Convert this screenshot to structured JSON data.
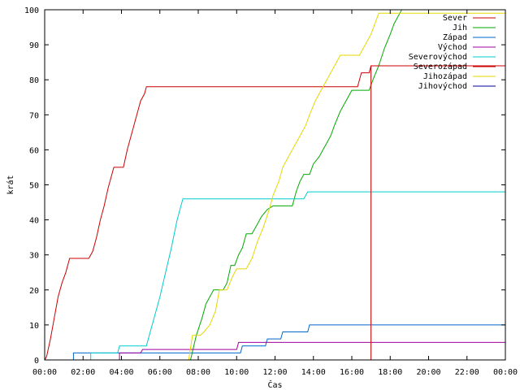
{
  "chart_data": {
    "type": "line",
    "title": "",
    "xlabel": "Čas",
    "ylabel": "krát",
    "xlim": [
      0,
      24
    ],
    "ylim": [
      0,
      100
    ],
    "grid": false,
    "legend_position": "top-right",
    "x_ticks": [
      {
        "value": 0,
        "label": "00:00"
      },
      {
        "value": 2,
        "label": "02:00"
      },
      {
        "value": 4,
        "label": "04:00"
      },
      {
        "value": 6,
        "label": "06:00"
      },
      {
        "value": 8,
        "label": "08:00"
      },
      {
        "value": 10,
        "label": "10:00"
      },
      {
        "value": 12,
        "label": "12:00"
      },
      {
        "value": 14,
        "label": "14:00"
      },
      {
        "value": 16,
        "label": "16:00"
      },
      {
        "value": 18,
        "label": "18:00"
      },
      {
        "value": 20,
        "label": "20:00"
      },
      {
        "value": 22,
        "label": "22:00"
      },
      {
        "value": 24,
        "label": "00:00"
      }
    ],
    "y_ticks": [
      {
        "value": 0,
        "label": "0"
      },
      {
        "value": 10,
        "label": "10"
      },
      {
        "value": 20,
        "label": "20"
      },
      {
        "value": 30,
        "label": "30"
      },
      {
        "value": 40,
        "label": "40"
      },
      {
        "value": 50,
        "label": "50"
      },
      {
        "value": 60,
        "label": "60"
      },
      {
        "value": 70,
        "label": "70"
      },
      {
        "value": 80,
        "label": "80"
      },
      {
        "value": 90,
        "label": "90"
      },
      {
        "value": 100,
        "label": "100"
      }
    ],
    "series": [
      {
        "name": "Sever",
        "color": "#cc0000",
        "points": [
          [
            0,
            0
          ],
          [
            0.1,
            1
          ],
          [
            0.3,
            6
          ],
          [
            0.5,
            12
          ],
          [
            0.7,
            18
          ],
          [
            0.9,
            22
          ],
          [
            1.1,
            25
          ],
          [
            1.3,
            29
          ],
          [
            2.3,
            29
          ],
          [
            2.5,
            31
          ],
          [
            2.7,
            35
          ],
          [
            2.9,
            40
          ],
          [
            3.1,
            44
          ],
          [
            3.3,
            49
          ],
          [
            3.5,
            53
          ],
          [
            3.6,
            55
          ],
          [
            4.1,
            55
          ],
          [
            4.3,
            60
          ],
          [
            4.6,
            66
          ],
          [
            4.8,
            70
          ],
          [
            5.0,
            74
          ],
          [
            5.2,
            76
          ],
          [
            5.3,
            78
          ],
          [
            16.3,
            78
          ],
          [
            16.5,
            82
          ],
          [
            16.9,
            82
          ],
          [
            17.0,
            84
          ],
          [
            24,
            84
          ]
        ]
      },
      {
        "name": "Jih",
        "color": "#00aa00",
        "points": [
          [
            0,
            0
          ],
          [
            7.6,
            0
          ],
          [
            7.9,
            7
          ],
          [
            8.2,
            12
          ],
          [
            8.4,
            16
          ],
          [
            8.6,
            18
          ],
          [
            8.8,
            20
          ],
          [
            9.3,
            20
          ],
          [
            9.5,
            22
          ],
          [
            9.7,
            27
          ],
          [
            9.9,
            27
          ],
          [
            10.1,
            30
          ],
          [
            10.3,
            32
          ],
          [
            10.5,
            36
          ],
          [
            10.8,
            36
          ],
          [
            11.0,
            38
          ],
          [
            11.3,
            41
          ],
          [
            11.6,
            43
          ],
          [
            11.9,
            44
          ],
          [
            12.9,
            44
          ],
          [
            13.1,
            48
          ],
          [
            13.3,
            51
          ],
          [
            13.5,
            53
          ],
          [
            13.8,
            53
          ],
          [
            14.0,
            56
          ],
          [
            14.3,
            58
          ],
          [
            14.6,
            61
          ],
          [
            14.9,
            64
          ],
          [
            15.1,
            67
          ],
          [
            15.4,
            71
          ],
          [
            15.7,
            74
          ],
          [
            16.0,
            77
          ],
          [
            16.9,
            77
          ],
          [
            17.1,
            80
          ],
          [
            17.4,
            84
          ],
          [
            17.7,
            89
          ],
          [
            18.0,
            93
          ],
          [
            18.2,
            96
          ],
          [
            18.4,
            98
          ],
          [
            18.6,
            100
          ],
          [
            24,
            100
          ]
        ]
      },
      {
        "name": "Západ",
        "color": "#0066cc",
        "points": [
          [
            0,
            0
          ],
          [
            1.5,
            0
          ],
          [
            1.5,
            2
          ],
          [
            10.2,
            2
          ],
          [
            10.3,
            4
          ],
          [
            11.5,
            4
          ],
          [
            11.6,
            6
          ],
          [
            12.3,
            6
          ],
          [
            12.4,
            8
          ],
          [
            13.7,
            8
          ],
          [
            13.8,
            10
          ],
          [
            24,
            10
          ]
        ]
      },
      {
        "name": "Východ",
        "color": "#a000a0",
        "points": [
          [
            0,
            0
          ],
          [
            3.9,
            0
          ],
          [
            3.9,
            2
          ],
          [
            5.0,
            2
          ],
          [
            5.1,
            3
          ],
          [
            10.0,
            3
          ],
          [
            10.1,
            5
          ],
          [
            24,
            5
          ]
        ]
      },
      {
        "name": "Severovýchod",
        "color": "#00cccc",
        "points": [
          [
            0,
            0
          ],
          [
            2.4,
            0
          ],
          [
            2.4,
            2
          ],
          [
            3.8,
            2
          ],
          [
            3.9,
            4
          ],
          [
            5.3,
            4
          ],
          [
            5.5,
            8
          ],
          [
            5.7,
            12
          ],
          [
            6.0,
            18
          ],
          [
            6.3,
            25
          ],
          [
            6.6,
            32
          ],
          [
            6.9,
            40
          ],
          [
            7.1,
            44
          ],
          [
            7.2,
            46
          ],
          [
            13.5,
            46
          ],
          [
            13.7,
            48
          ],
          [
            24,
            48
          ]
        ]
      },
      {
        "name": "Severozápad",
        "color": "#cc0000",
        "points": [
          [
            0,
            0
          ],
          [
            17.0,
            0
          ],
          [
            17.0,
            84
          ],
          [
            24,
            84
          ]
        ]
      },
      {
        "name": "Jihozápad",
        "color": "#e6d800",
        "points": [
          [
            0,
            0
          ],
          [
            7.5,
            0
          ],
          [
            7.7,
            7
          ],
          [
            8.1,
            7
          ],
          [
            8.3,
            8
          ],
          [
            8.6,
            10
          ],
          [
            8.9,
            14
          ],
          [
            9.1,
            20
          ],
          [
            9.5,
            20
          ],
          [
            9.8,
            24
          ],
          [
            10.0,
            26
          ],
          [
            10.5,
            26
          ],
          [
            10.8,
            29
          ],
          [
            11.1,
            34
          ],
          [
            11.4,
            38
          ],
          [
            11.7,
            43
          ],
          [
            11.9,
            47
          ],
          [
            12.2,
            51
          ],
          [
            12.4,
            55
          ],
          [
            12.7,
            58
          ],
          [
            13.0,
            61
          ],
          [
            13.3,
            64
          ],
          [
            13.6,
            67
          ],
          [
            13.8,
            70
          ],
          [
            14.1,
            74
          ],
          [
            14.4,
            77
          ],
          [
            14.7,
            80
          ],
          [
            15.0,
            83
          ],
          [
            15.2,
            85
          ],
          [
            15.4,
            87
          ],
          [
            16.4,
            87
          ],
          [
            16.7,
            90
          ],
          [
            17.0,
            93
          ],
          [
            17.2,
            96
          ],
          [
            17.4,
            99
          ],
          [
            24,
            99
          ]
        ]
      },
      {
        "name": "Jihovýchod",
        "color": "#000099",
        "points": [
          [
            0,
            0
          ],
          [
            24,
            0
          ]
        ]
      }
    ]
  }
}
